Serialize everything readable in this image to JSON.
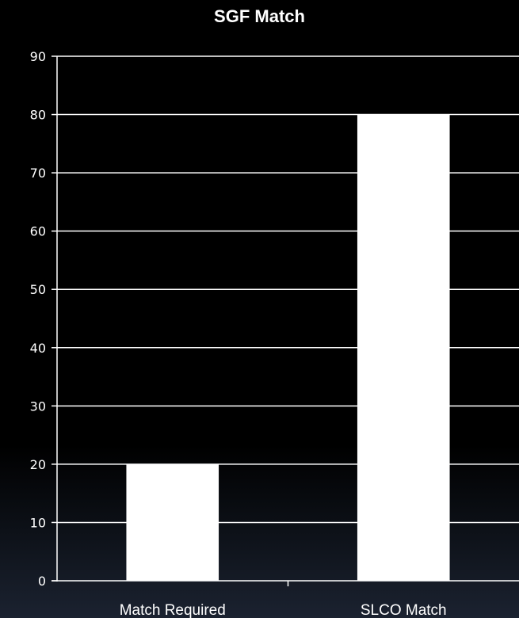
{
  "chart_data": {
    "type": "bar",
    "title": "SGF Match",
    "categories": [
      "Match Required",
      "SLCO Match"
    ],
    "values": [
      20,
      80
    ],
    "ylim": [
      0,
      90
    ],
    "yticks": [
      0,
      10,
      20,
      30,
      40,
      50,
      60,
      70,
      80,
      90
    ],
    "grid": true,
    "legend": "none",
    "colors": {
      "bar": "#ffffff",
      "grid": "#ffffff",
      "text": "#ffffff",
      "background": "#000000"
    }
  }
}
